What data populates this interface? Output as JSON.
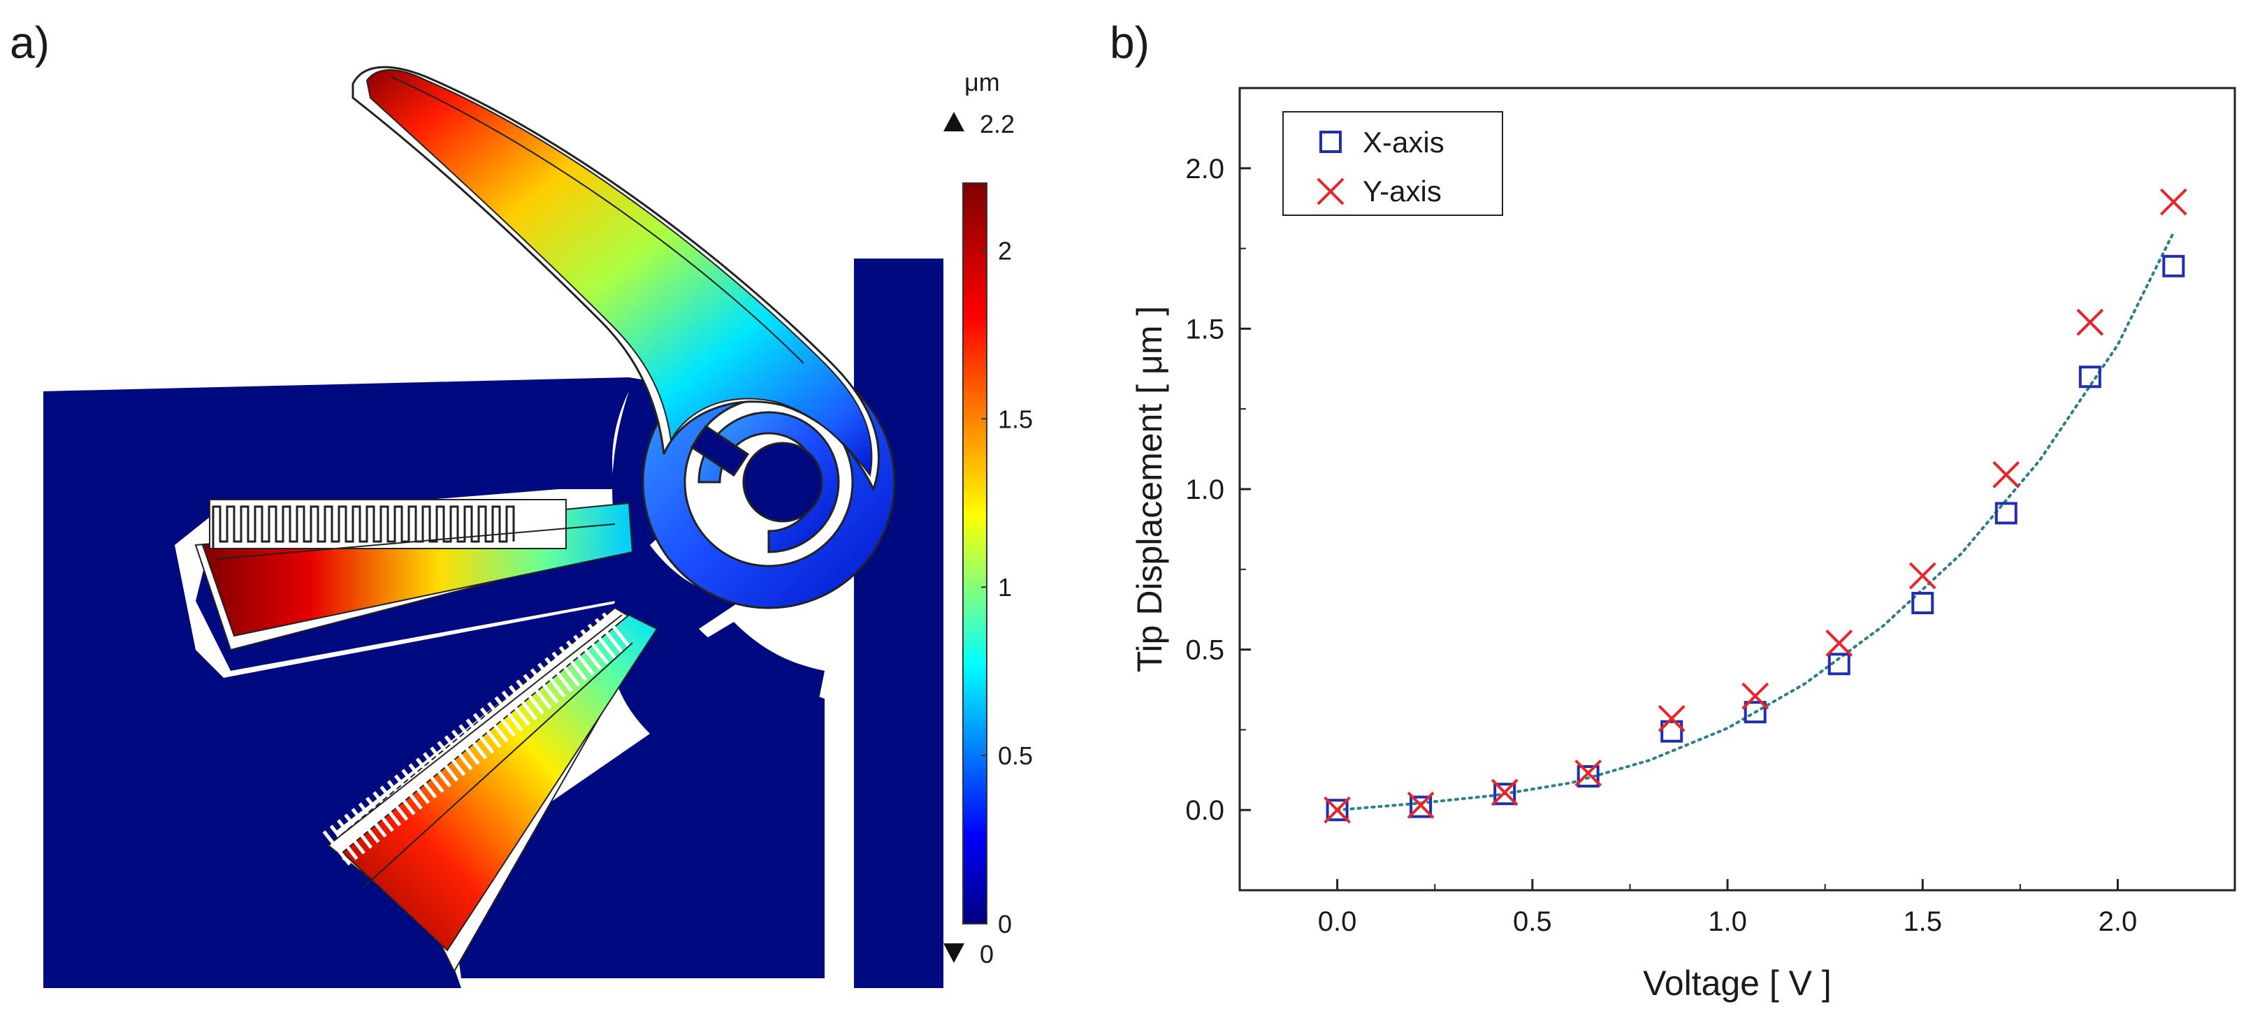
{
  "panel_a": {
    "label": "a)",
    "colorbar": {
      "unit": "μm",
      "max_label": "2.2",
      "min_label": "0",
      "ticks": [
        "2",
        "1.5",
        "1",
        "0.5",
        "0"
      ],
      "tick_values": [
        2,
        1.5,
        1,
        0.5,
        0
      ],
      "range": [
        0,
        2.2
      ]
    }
  },
  "panel_b": {
    "label": "b)"
  },
  "chart_data": {
    "type": "scatter",
    "title": "",
    "xlabel": "Voltage [ V ]",
    "ylabel": "Tip Displacement [ μm ]",
    "xlim": [
      -0.25,
      2.3
    ],
    "ylim": [
      -0.25,
      2.25
    ],
    "xticks": [
      "0.0",
      "0.5",
      "1.0",
      "1.5",
      "2.0"
    ],
    "xtick_values": [
      0,
      0.5,
      1.0,
      1.5,
      2.0
    ],
    "yticks": [
      "0.0",
      "0.5",
      "1.0",
      "1.5",
      "2.0"
    ],
    "ytick_values": [
      0,
      0.5,
      1.0,
      1.5,
      2.0
    ],
    "legend_position": "top-left",
    "series": [
      {
        "name": "X-axis",
        "marker": "square",
        "color": "#1f2fb0",
        "x": [
          0,
          0.214,
          0.429,
          0.643,
          0.857,
          1.071,
          1.286,
          1.5,
          1.714,
          1.929,
          2.143
        ],
        "y": [
          0,
          0.01,
          0.05,
          0.105,
          0.245,
          0.305,
          0.455,
          0.645,
          0.925,
          1.35,
          1.695
        ]
      },
      {
        "name": "Y-axis",
        "marker": "x",
        "color": "#e8262a",
        "x": [
          0,
          0.214,
          0.429,
          0.643,
          0.857,
          1.071,
          1.286,
          1.5,
          1.714,
          1.929,
          2.143
        ],
        "y": [
          0,
          0.015,
          0.055,
          0.115,
          0.285,
          0.355,
          0.52,
          0.73,
          1.045,
          1.52,
          1.895
        ]
      }
    ],
    "fit": {
      "style": "dotted",
      "color": "#2a7f8a",
      "x": [
        0,
        0.2,
        0.4,
        0.6,
        0.8,
        1.0,
        1.2,
        1.4,
        1.6,
        1.8,
        2.0,
        2.143
      ],
      "y": [
        0,
        0.02,
        0.045,
        0.085,
        0.155,
        0.255,
        0.395,
        0.575,
        0.8,
        1.09,
        1.45,
        1.8
      ]
    }
  }
}
